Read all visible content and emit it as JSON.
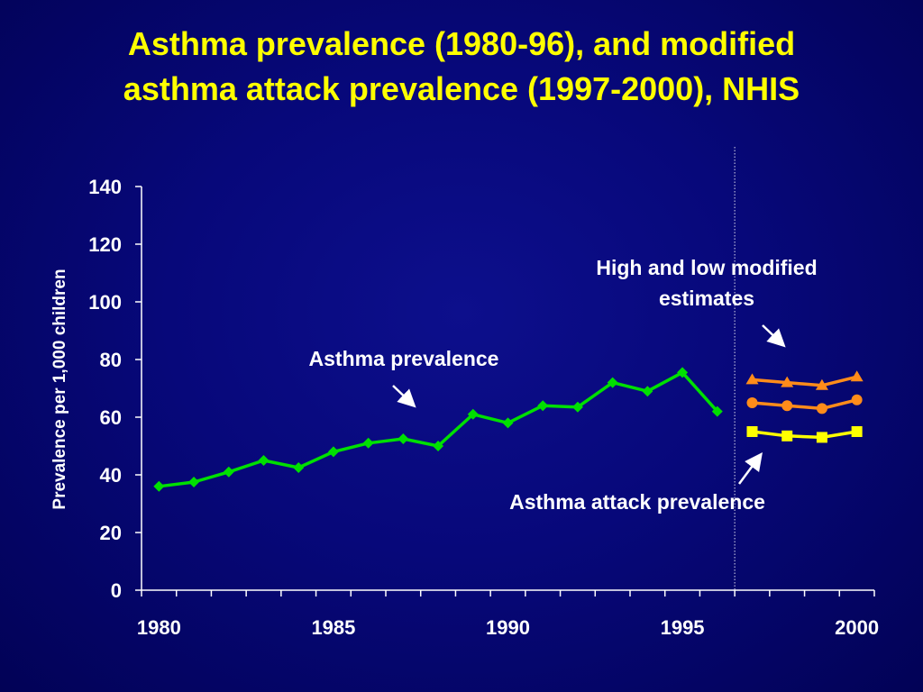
{
  "title": {
    "line1": "Asthma prevalence (1980-96), and modified",
    "line2": "asthma attack prevalence (1997-2000), NHIS"
  },
  "annotations": {
    "asthma_prevalence": "Asthma prevalence",
    "high_low_line1": "High and low modified",
    "high_low_line2": "estimates",
    "attack_prevalence": "Asthma attack prevalence"
  },
  "colors": {
    "background": "#07087a",
    "title": "#ffff00",
    "asthma_prevalence": "#00e000",
    "high_estimate": "#ff8c1a",
    "low_estimate": "#ff8c1a",
    "attack_prevalence": "#ffff00"
  },
  "chart_data": {
    "type": "line",
    "title": "Asthma prevalence (1980-96), and modified asthma attack prevalence (1997-2000), NHIS",
    "xlabel": "",
    "ylabel": "Prevalence per 1,000 children",
    "xlim": [
      1979.5,
      2000.5
    ],
    "ylim": [
      0,
      140
    ],
    "x_ticks": [
      1980,
      1985,
      1990,
      1995,
      2000
    ],
    "y_ticks": [
      0,
      20,
      40,
      60,
      80,
      100,
      120,
      140
    ],
    "vertical_divider_at": 1996.5,
    "grid": false,
    "series": [
      {
        "marker": "diamond",
        "x": [
          1980,
          1981,
          1982,
          1983,
          1984,
          1985,
          1986,
          1987,
          1988,
          1989,
          1990,
          1991,
          1992,
          1993,
          1994,
          1995,
          1996
        ],
        "values": [
          36,
          37.5,
          41,
          45,
          42.5,
          48,
          51,
          52.5,
          50,
          61,
          58,
          64,
          63.5,
          72,
          69,
          75.5,
          62
        ]
      },
      {
        "marker": "triangle",
        "x": [
          1997,
          1998,
          1999,
          2000
        ],
        "values": [
          73,
          72,
          71,
          74
        ]
      },
      {
        "marker": "circle",
        "x": [
          1997,
          1998,
          1999,
          2000
        ],
        "values": [
          65,
          64,
          63,
          66
        ]
      },
      {
        "marker": "square",
        "x": [
          1997,
          1998,
          1999,
          2000
        ],
        "values": [
          55,
          53.5,
          53,
          55
        ]
      }
    ]
  }
}
